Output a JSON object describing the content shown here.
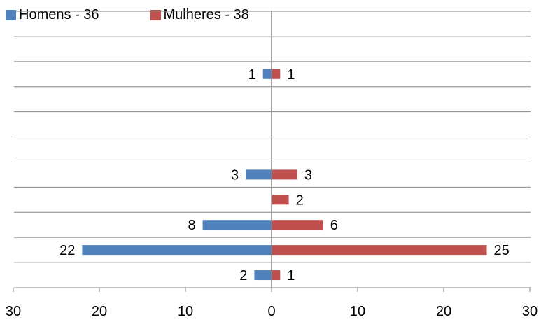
{
  "chart_data": {
    "type": "bar",
    "orientation": "horizontal",
    "layout": "back-to-back",
    "series": [
      {
        "name": "Homens - 36",
        "color": "#4f81bd",
        "side": "left",
        "values": [
          2,
          22,
          8,
          0,
          3,
          0,
          0,
          0,
          1,
          0,
          0
        ]
      },
      {
        "name": "Mulheres - 38",
        "color": "#c0504d",
        "side": "right",
        "values": [
          1,
          25,
          6,
          2,
          3,
          0,
          0,
          0,
          1,
          0,
          0
        ]
      }
    ],
    "xlim": [
      -30,
      30
    ],
    "xticks": [
      -30,
      -20,
      -10,
      0,
      10,
      20,
      30
    ],
    "xtick_labels": [
      "30",
      "20",
      "10",
      "0",
      "10",
      "20",
      "30"
    ],
    "grid": true,
    "legend_position": "top-left",
    "category_order": "bottom-to-top"
  }
}
